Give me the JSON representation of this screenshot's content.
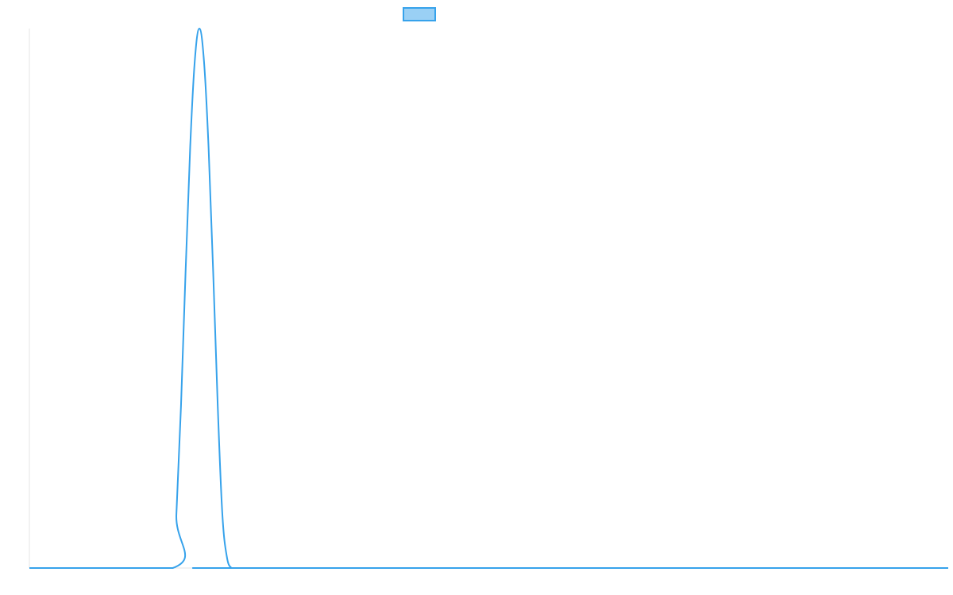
{
  "chart_data": {
    "type": "line",
    "title": "",
    "xlabel": "",
    "ylabel": "",
    "grid": false,
    "legend": {
      "position": "top-center",
      "entries": [
        {
          "label": "",
          "fill_color": "#9ad0f5",
          "border_color": "#36a2eb"
        }
      ]
    },
    "xlim": [
      0,
      100
    ],
    "ylim": [
      0,
      1
    ],
    "series": [
      {
        "color": "#36a2eb",
        "x": [
          0,
          15.6,
          16.0,
          16.5,
          17.0,
          17.5,
          18.0,
          18.5,
          19.0,
          19.5,
          20.0,
          20.5,
          21.0,
          21.5,
          22.0,
          22.5,
          23.0,
          23.5,
          24.0,
          100
        ],
        "y": [
          0,
          0,
          0.1,
          0.3,
          0.55,
          0.78,
          0.94,
          1.0,
          0.94,
          0.78,
          0.55,
          0.3,
          0.1,
          0.02,
          0,
          0,
          0,
          0,
          0,
          0
        ]
      }
    ]
  }
}
